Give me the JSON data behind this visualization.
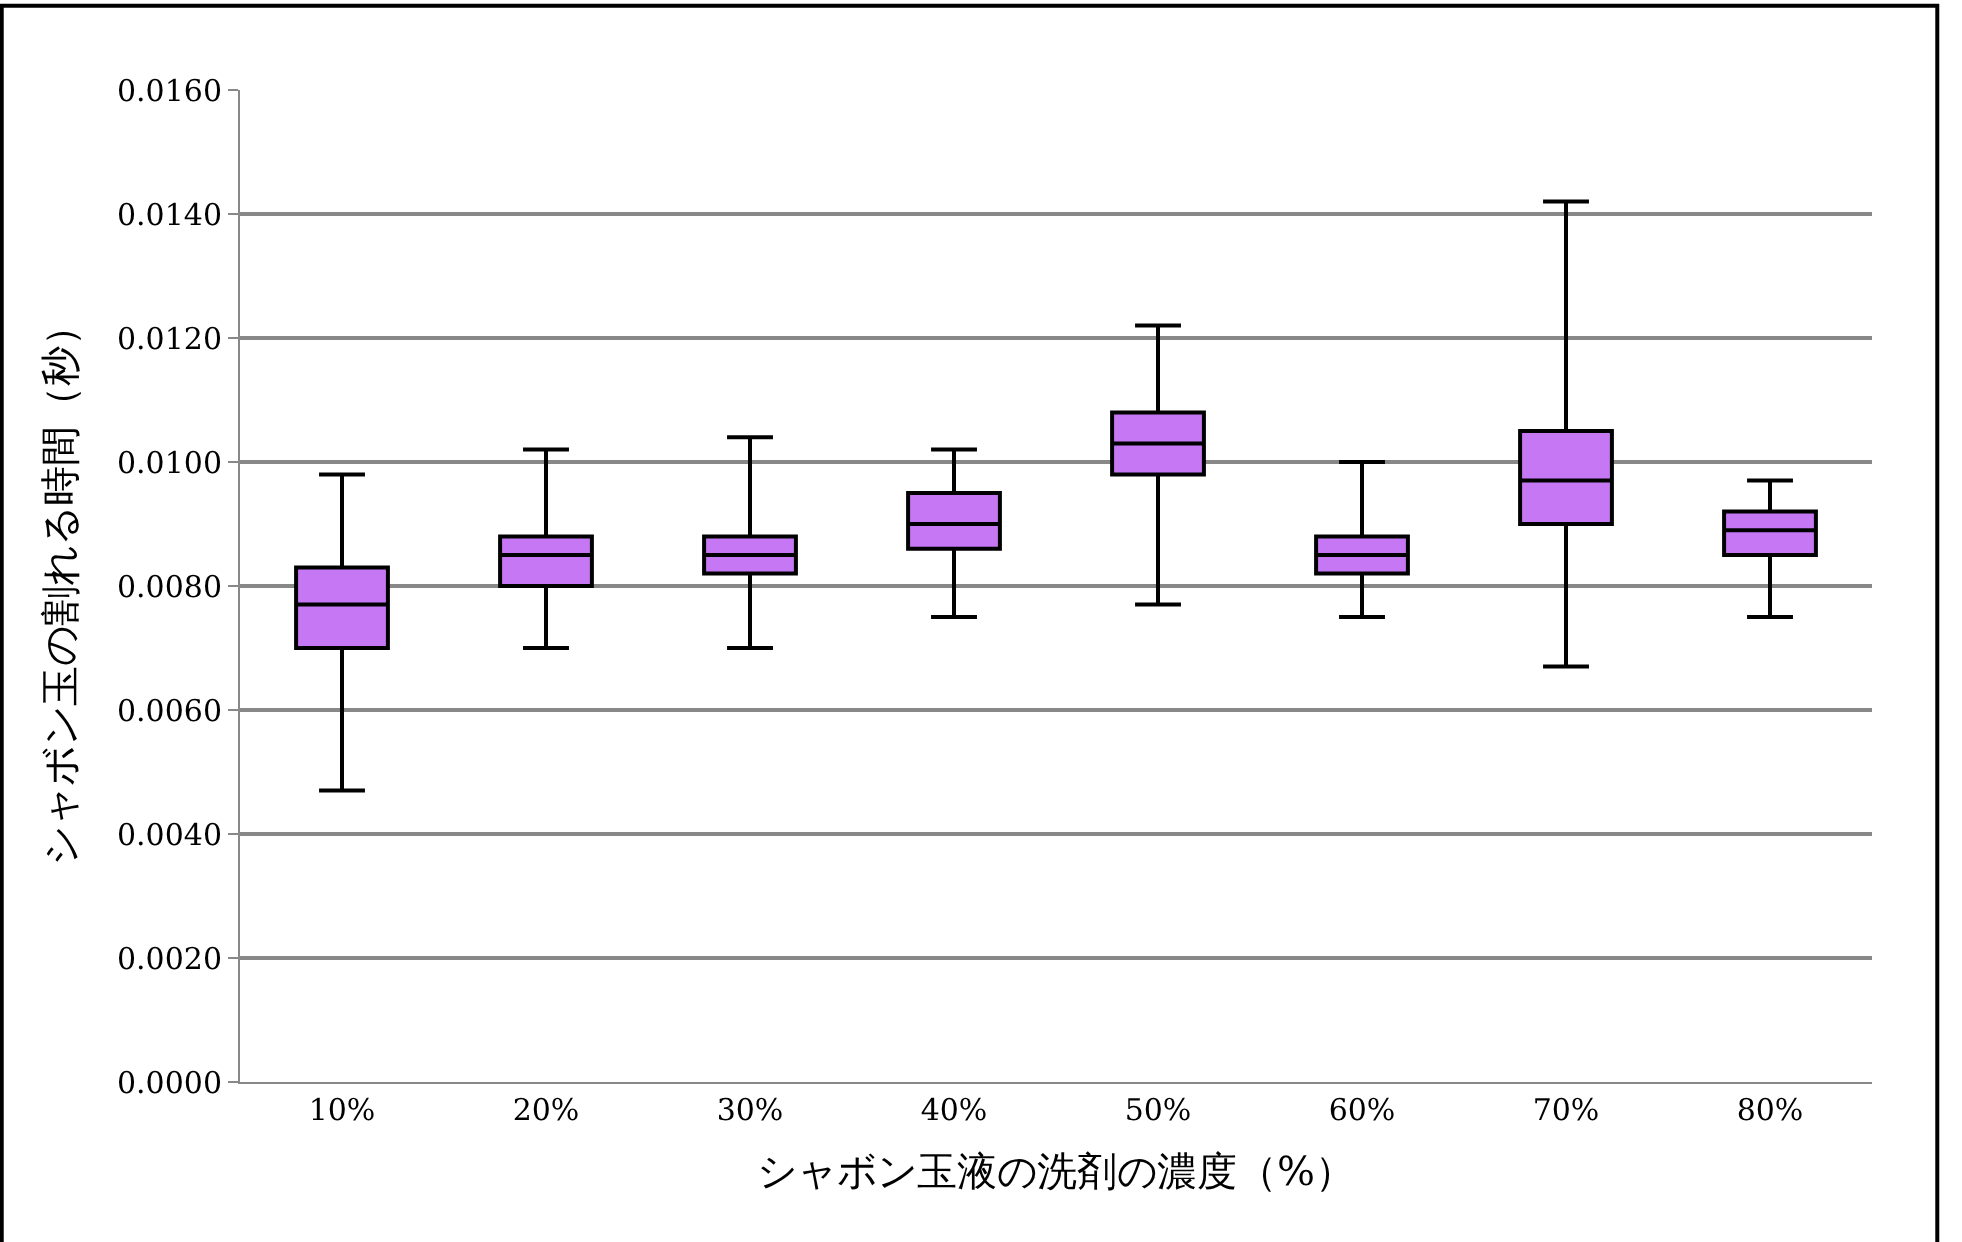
{
  "chart_data": {
    "type": "box",
    "xlabel": "シャボン玉液の洗剤の濃度（%）",
    "ylabel": "シャボン玉の割れる時間（秒）",
    "categories": [
      "10%",
      "20%",
      "30%",
      "40%",
      "50%",
      "60%",
      "70%",
      "80%"
    ],
    "series": [
      {
        "color": "#c678f4",
        "boxes": [
          {
            "low": 0.0047,
            "q1": 0.007,
            "median": 0.0077,
            "q3": 0.0083,
            "high": 0.0098
          },
          {
            "low": 0.007,
            "q1": 0.008,
            "median": 0.0085,
            "q3": 0.0088,
            "high": 0.0102
          },
          {
            "low": 0.007,
            "q1": 0.0082,
            "median": 0.0085,
            "q3": 0.0088,
            "high": 0.0104
          },
          {
            "low": 0.0075,
            "q1": 0.0086,
            "median": 0.009,
            "q3": 0.0095,
            "high": 0.0102
          },
          {
            "low": 0.0077,
            "q1": 0.0098,
            "median": 0.0103,
            "q3": 0.0108,
            "high": 0.0122
          },
          {
            "low": 0.0075,
            "q1": 0.0082,
            "median": 0.0085,
            "q3": 0.0088,
            "high": 0.01
          },
          {
            "low": 0.0067,
            "q1": 0.009,
            "median": 0.0097,
            "q3": 0.0105,
            "high": 0.0142
          },
          {
            "low": 0.0075,
            "q1": 0.0085,
            "median": 0.0089,
            "q3": 0.0092,
            "high": 0.0097
          }
        ]
      }
    ],
    "ylim": [
      0,
      0.016
    ],
    "yticks": [
      {
        "value": 0,
        "label": "0.0000"
      },
      {
        "value": 0.002,
        "label": "0.0020"
      },
      {
        "value": 0.004,
        "label": "0.0040"
      },
      {
        "value": 0.006,
        "label": "0.0060"
      },
      {
        "value": 0.008,
        "label": "0.0080"
      },
      {
        "value": 0.01,
        "label": "0.0100"
      },
      {
        "value": 0.012,
        "label": "0.0120"
      },
      {
        "value": 0.014,
        "label": "0.0140"
      },
      {
        "value": 0.016,
        "label": "0.0160"
      }
    ],
    "grid": "y"
  }
}
